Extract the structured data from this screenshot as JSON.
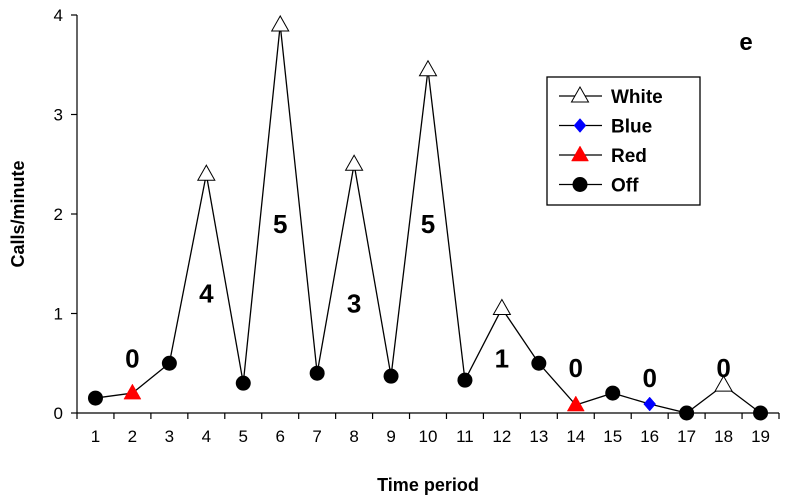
{
  "chart_data": {
    "type": "line",
    "panel_label": "e",
    "xlabel": "Time period",
    "ylabel": "Calls/minute",
    "x": [
      1,
      2,
      3,
      4,
      5,
      6,
      7,
      8,
      9,
      10,
      11,
      12,
      13,
      14,
      15,
      16,
      17,
      18,
      19
    ],
    "y": [
      0.15,
      0.2,
      0.5,
      2.4,
      0.3,
      3.9,
      0.4,
      2.5,
      0.37,
      3.45,
      0.33,
      1.05,
      0.5,
      0.08,
      0.2,
      0.09,
      0.0,
      0.28,
      0.0
    ],
    "markers": [
      "Off",
      "Red",
      "Off",
      "White",
      "Off",
      "White",
      "Off",
      "White",
      "Off",
      "White",
      "Off",
      "White",
      "Off",
      "Red",
      "Off",
      "Blue",
      "Off",
      "White",
      "Off"
    ],
    "ylim": [
      0,
      4
    ],
    "yticks": [
      0,
      1,
      2,
      3,
      4
    ],
    "xticks": [
      1,
      2,
      3,
      4,
      5,
      6,
      7,
      8,
      9,
      10,
      11,
      12,
      13,
      14,
      15,
      16,
      17,
      18,
      19
    ],
    "grid": false,
    "legend": {
      "position": "top-right",
      "entries": [
        {
          "name": "White",
          "marker": "triangle-open",
          "color": "#ffffff"
        },
        {
          "name": "Blue",
          "marker": "diamond",
          "color": "#0000ff"
        },
        {
          "name": "Red",
          "marker": "triangle",
          "color": "#ff0000"
        },
        {
          "name": "Off",
          "marker": "circle",
          "color": "#000000"
        }
      ]
    },
    "annotations": [
      {
        "text": "0",
        "x": 2,
        "y": 0.55
      },
      {
        "text": "4",
        "x": 4,
        "y": 1.2
      },
      {
        "text": "5",
        "x": 6,
        "y": 1.9
      },
      {
        "text": "3",
        "x": 8,
        "y": 1.1
      },
      {
        "text": "5",
        "x": 10,
        "y": 1.9
      },
      {
        "text": "1",
        "x": 12,
        "y": 0.55
      },
      {
        "text": "0",
        "x": 14,
        "y": 0.45
      },
      {
        "text": "0",
        "x": 16,
        "y": 0.35
      },
      {
        "text": "0",
        "x": 18,
        "y": 0.45
      }
    ]
  }
}
